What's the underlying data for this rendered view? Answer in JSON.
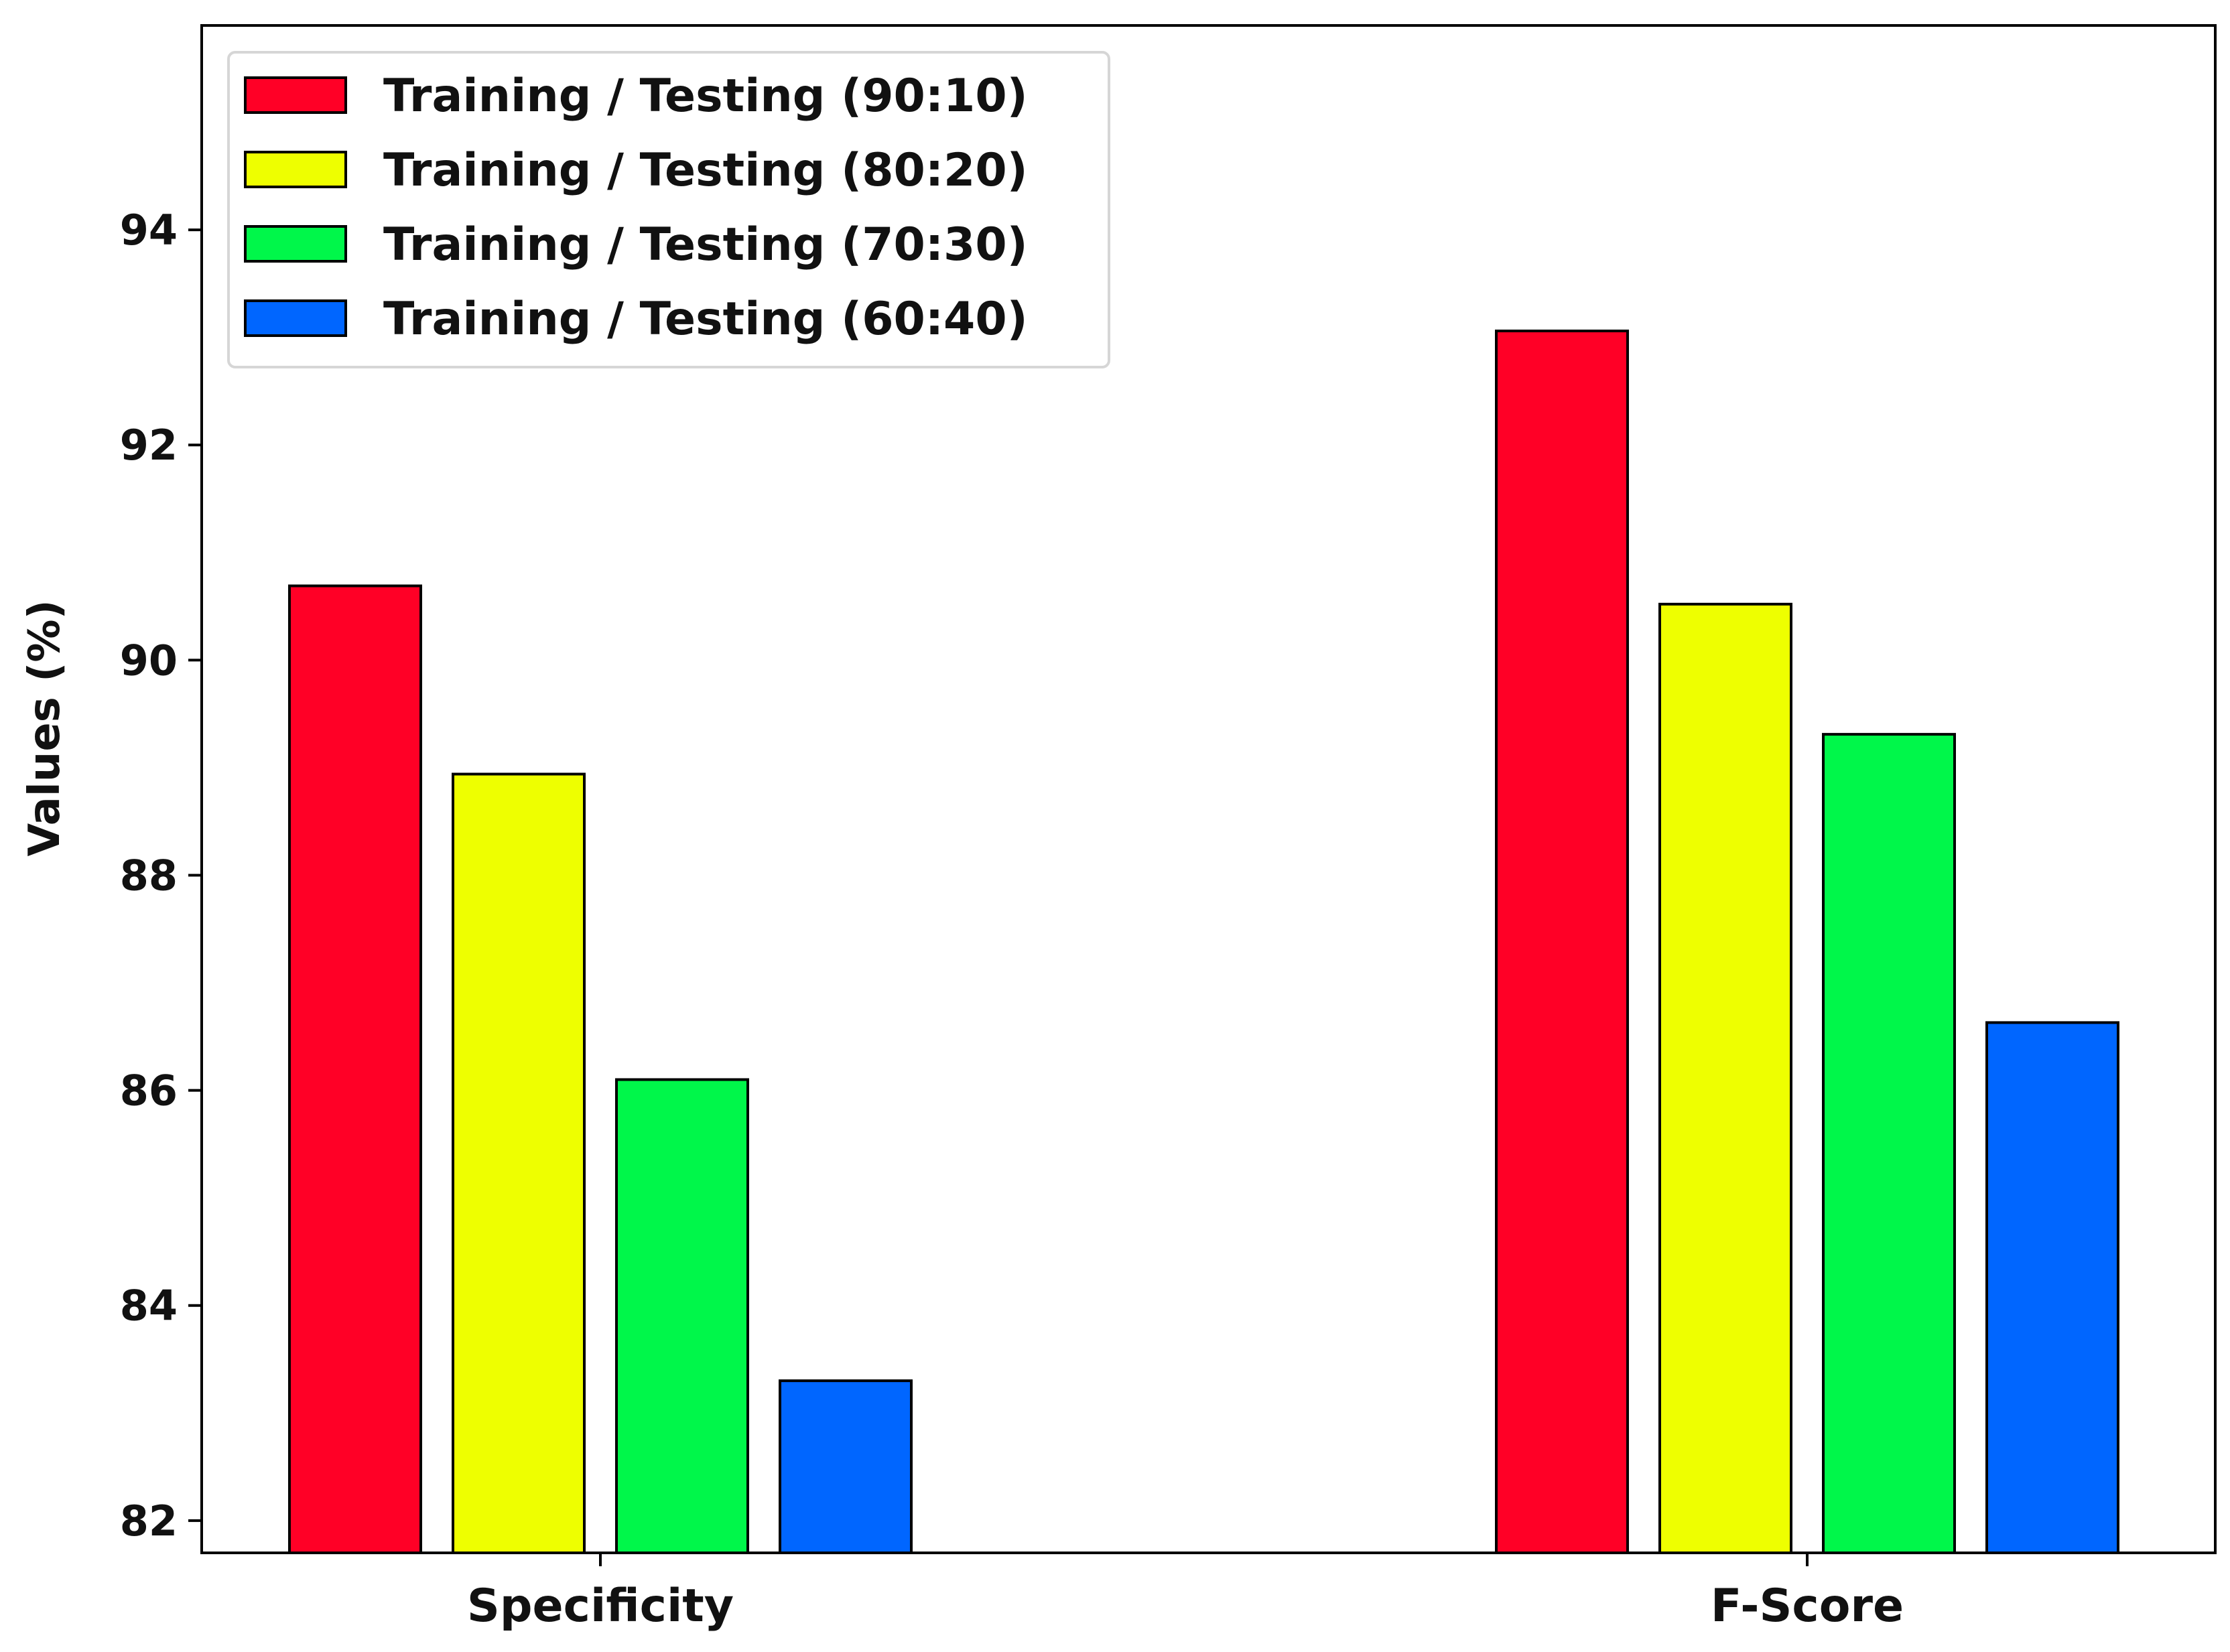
{
  "chart_data": {
    "type": "bar",
    "title": "",
    "xlabel": "",
    "ylabel": "Values (%)",
    "categories": [
      "Specificity",
      "F-Score"
    ],
    "series": [
      {
        "name": "Training / Testing (90:10)",
        "color": "#ff0026",
        "values": [
          90.69,
          93.06
        ]
      },
      {
        "name": "Training / Testing (80:20)",
        "color": "#eeff00",
        "values": [
          88.94,
          90.52
        ]
      },
      {
        "name": "Training / Testing (70:30)",
        "color": "#00f74a",
        "values": [
          86.1,
          89.31
        ]
      },
      {
        "name": "Training / Testing (60:40)",
        "color": "#0066ff",
        "values": [
          83.3,
          86.63
        ]
      }
    ],
    "ylim": [
      81.7,
      95.9
    ],
    "yticks": [
      82,
      84,
      86,
      88,
      90,
      92,
      94
    ],
    "grid": false,
    "legend_position": "top-left"
  }
}
